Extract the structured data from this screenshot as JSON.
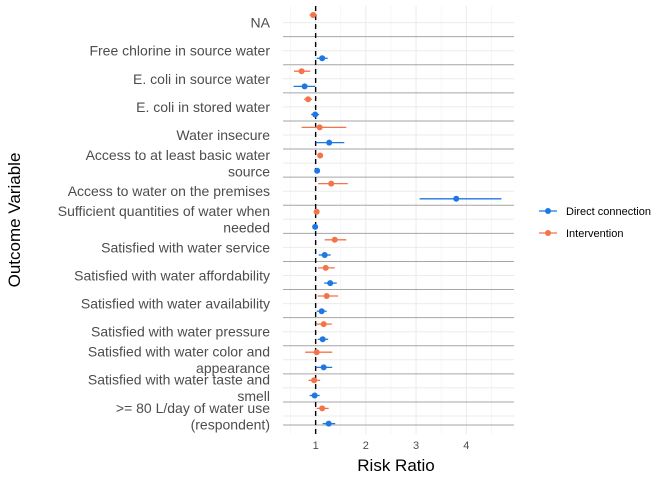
{
  "chart_data": {
    "type": "forest",
    "xlabel": "Risk Ratio",
    "ylabel": "Outcome Variable",
    "xlim": [
      0.35,
      4.95
    ],
    "x_ticks": [
      1,
      2,
      3,
      4
    ],
    "tick_labels": [
      "1",
      "2",
      "3",
      "4"
    ],
    "reference_line": 1,
    "grid": true,
    "legend_position": "right",
    "categories": [
      {
        "label_lines": [
          "NA"
        ]
      },
      {
        "label_lines": [
          "Free chlorine in source water"
        ]
      },
      {
        "label_lines": [
          "E. coli in source water"
        ]
      },
      {
        "label_lines": [
          "E. coli in stored water"
        ]
      },
      {
        "label_lines": [
          "Water insecure"
        ]
      },
      {
        "label_lines": [
          "Access to at least basic water",
          "source"
        ]
      },
      {
        "label_lines": [
          "Access to water on the premises"
        ]
      },
      {
        "label_lines": [
          "Sufficient quantities of water when",
          "needed"
        ]
      },
      {
        "label_lines": [
          "Satisfied with water service"
        ]
      },
      {
        "label_lines": [
          "Satisfied with water affordability"
        ]
      },
      {
        "label_lines": [
          "Satisfied with water availability"
        ]
      },
      {
        "label_lines": [
          "Satisfied with water pressure"
        ]
      },
      {
        "label_lines": [
          "Satisfied with water color and",
          "appearance"
        ]
      },
      {
        "label_lines": [
          "Satisfied with water taste and",
          "smell"
        ]
      },
      {
        "label_lines": [
          ">= 80 L/day of water use",
          "(respondent)"
        ]
      }
    ],
    "series": [
      {
        "name": "Direct connection",
        "color": "#1f77e4",
        "points": [
          {
            "category": 1,
            "estimate": 1.13,
            "lower": 1.02,
            "upper": 1.24
          },
          {
            "category": 2,
            "estimate": 0.78,
            "lower": 0.56,
            "upper": 0.99
          },
          {
            "category": 3,
            "estimate": 0.99,
            "lower": 0.91,
            "upper": 1.07
          },
          {
            "category": 4,
            "estimate": 1.27,
            "lower": 1.0,
            "upper": 1.57
          },
          {
            "category": 5,
            "estimate": 1.03,
            "lower": 1.0,
            "upper": 1.06
          },
          {
            "category": 6,
            "estimate": 3.8,
            "lower": 3.07,
            "upper": 4.7
          },
          {
            "category": 7,
            "estimate": 0.99,
            "lower": 0.96,
            "upper": 1.02
          },
          {
            "category": 8,
            "estimate": 1.18,
            "lower": 1.06,
            "upper": 1.3
          },
          {
            "category": 9,
            "estimate": 1.29,
            "lower": 1.17,
            "upper": 1.42
          },
          {
            "category": 10,
            "estimate": 1.12,
            "lower": 1.02,
            "upper": 1.22
          },
          {
            "category": 11,
            "estimate": 1.14,
            "lower": 1.04,
            "upper": 1.25
          },
          {
            "category": 12,
            "estimate": 1.16,
            "lower": 1.0,
            "upper": 1.33
          },
          {
            "category": 13,
            "estimate": 0.98,
            "lower": 0.88,
            "upper": 1.08
          },
          {
            "category": 14,
            "estimate": 1.26,
            "lower": 1.14,
            "upper": 1.39
          }
        ]
      },
      {
        "name": "Intervention",
        "color": "#f4744a",
        "points": [
          {
            "category": 0,
            "estimate": 0.95,
            "lower": 0.88,
            "upper": 1.03
          },
          {
            "category": 2,
            "estimate": 0.72,
            "lower": 0.57,
            "upper": 0.89
          },
          {
            "category": 3,
            "estimate": 0.85,
            "lower": 0.77,
            "upper": 0.93
          },
          {
            "category": 4,
            "estimate": 1.08,
            "lower": 0.72,
            "upper": 1.61
          },
          {
            "category": 5,
            "estimate": 1.09,
            "lower": 1.04,
            "upper": 1.13
          },
          {
            "category": 6,
            "estimate": 1.31,
            "lower": 1.05,
            "upper": 1.64
          },
          {
            "category": 7,
            "estimate": 1.02,
            "lower": 0.99,
            "upper": 1.05
          },
          {
            "category": 8,
            "estimate": 1.38,
            "lower": 1.18,
            "upper": 1.61
          },
          {
            "category": 9,
            "estimate": 1.2,
            "lower": 1.05,
            "upper": 1.38
          },
          {
            "category": 10,
            "estimate": 1.22,
            "lower": 1.04,
            "upper": 1.45
          },
          {
            "category": 11,
            "estimate": 1.16,
            "lower": 1.02,
            "upper": 1.32
          },
          {
            "category": 12,
            "estimate": 1.02,
            "lower": 0.79,
            "upper": 1.33
          },
          {
            "category": 13,
            "estimate": 0.97,
            "lower": 0.86,
            "upper": 1.09
          },
          {
            "category": 14,
            "estimate": 1.13,
            "lower": 1.02,
            "upper": 1.26
          }
        ]
      }
    ]
  }
}
